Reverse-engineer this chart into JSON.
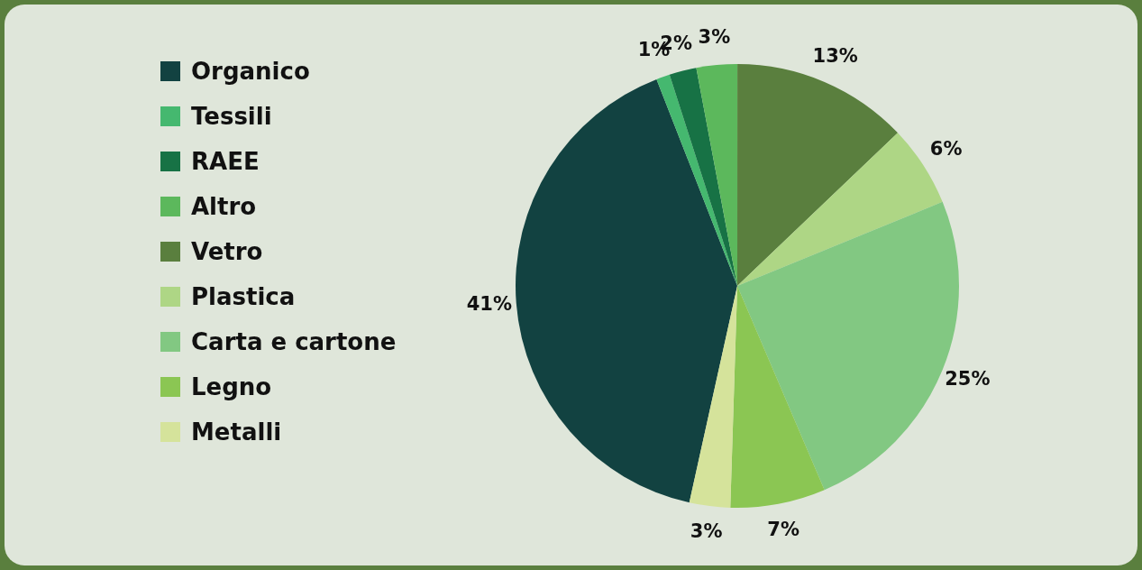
{
  "chart_data": {
    "type": "pie",
    "categories": [
      "Organico",
      "Tessili",
      "RAEE",
      "Altro",
      "Vetro",
      "Plastica",
      "Carta e cartone",
      "Legno",
      "Metalli"
    ],
    "values": [
      41,
      1,
      2,
      3,
      13,
      6,
      25,
      7,
      3
    ],
    "colors": [
      "#124241",
      "#45b86f",
      "#177245",
      "#5cb85c",
      "#5a7f3e",
      "#aed685",
      "#82c882",
      "#8bc653",
      "#d5e39b"
    ],
    "value_labels": [
      "41%",
      "1%",
      "2%",
      "3%",
      "13%",
      "6%",
      "25%",
      "7%",
      "3%"
    ],
    "legend": "left"
  }
}
